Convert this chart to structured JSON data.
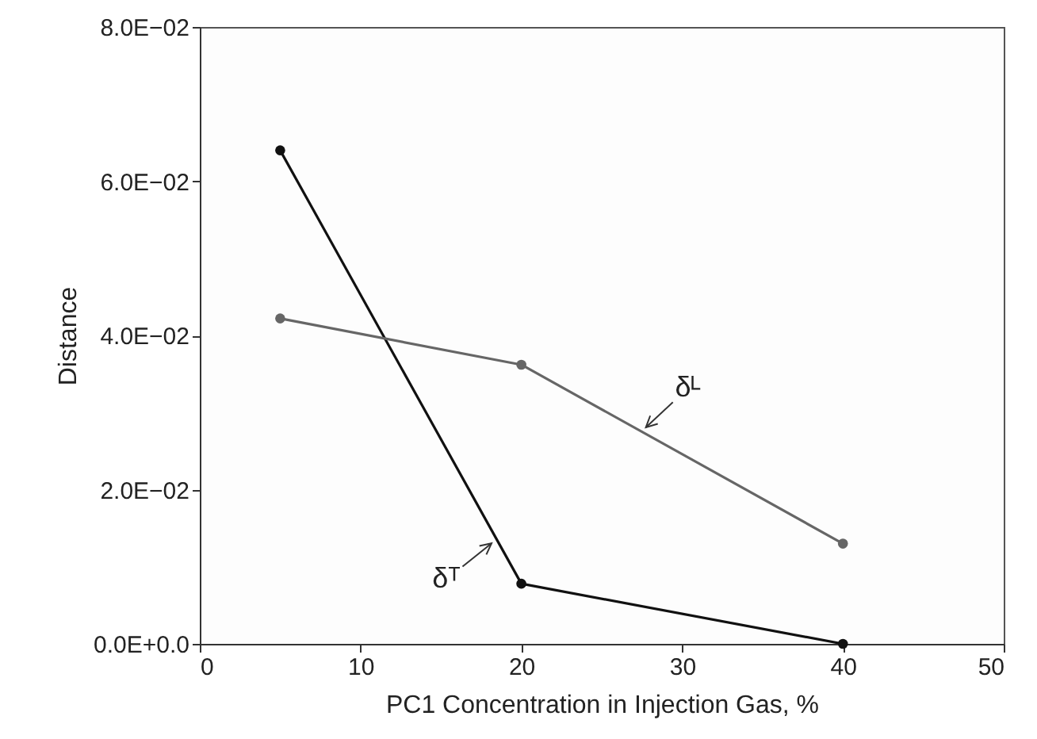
{
  "chart_data": {
    "type": "line",
    "xlabel": "PC1 Concentration in Injection Gas, %",
    "ylabel": "Distance",
    "x": [
      5,
      20,
      40
    ],
    "series": [
      {
        "color": "#111111",
        "values": [
          0.064,
          0.0078,
          0
        ]
      },
      {
        "color": "#666666",
        "values": [
          0.0422,
          0.0362,
          0.013
        ]
      }
    ],
    "xlim": [
      0,
      50
    ],
    "xticks": [
      0,
      10,
      20,
      30,
      40,
      50
    ],
    "ylim": [
      0,
      0.08
    ],
    "yticks": [
      {
        "value": 0,
        "label": "0.0E+0.0"
      },
      {
        "value": 0.02,
        "label": "2.0E−02"
      },
      {
        "value": 0.04,
        "label": "4.0E−02"
      },
      {
        "value": 0.06,
        "label": "6.0E−02"
      },
      {
        "value": 0.08,
        "label": "8.0E−02"
      }
    ],
    "marker": "circle",
    "line_style": "solid",
    "grid": false,
    "annotations": [
      {
        "text": "δᴸ",
        "x": 27.6,
        "y": 0.0278
      },
      {
        "text": "δᵀ",
        "x": 18.3,
        "y": 0.0133
      }
    ]
  }
}
